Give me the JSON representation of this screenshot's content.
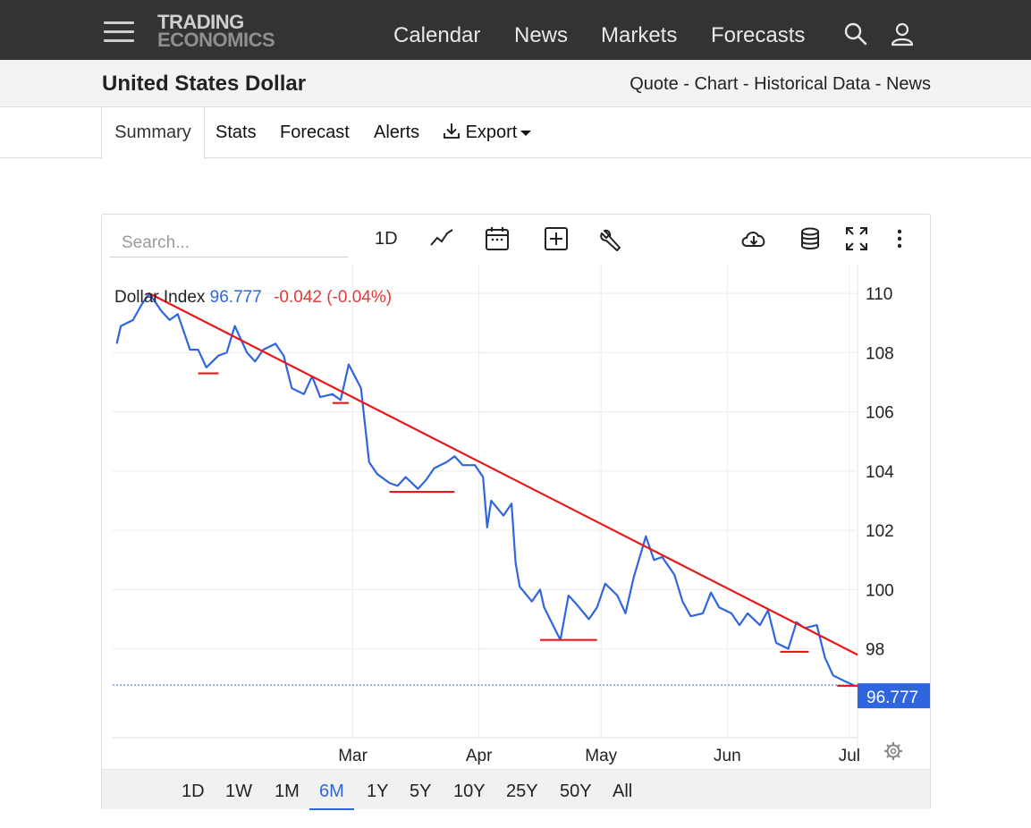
{
  "header": {
    "logo_line1": "TRADING",
    "logo_line2": "ECONOMICS",
    "nav": [
      "Calendar",
      "News",
      "Markets",
      "Forecasts"
    ]
  },
  "page": {
    "title": "United States Dollar",
    "links": [
      "Quote",
      "Chart",
      "Historical Data",
      "News"
    ]
  },
  "tabs": [
    "Summary",
    "Stats",
    "Forecast",
    "Alerts",
    "Export"
  ],
  "toolbar": {
    "search_placeholder": "Search...",
    "interval_label": "1D"
  },
  "legend": {
    "name": "Dollar Index",
    "value": "96.777",
    "change": "-0.042 (-0.04%)"
  },
  "colors": {
    "line": "#2f66e0",
    "trend": "#e8191a",
    "price_tag": "#2f66e0"
  },
  "ranges": [
    "1D",
    "1W",
    "1M",
    "6M",
    "1Y",
    "5Y",
    "10Y",
    "25Y",
    "50Y",
    "All"
  ],
  "active_range": "6M",
  "chart_data": {
    "type": "line",
    "series": [
      {
        "name": "Dollar Index",
        "values": [
          {
            "x": "2025-01-02",
            "y": 108.3
          },
          {
            "x": "2025-01-03",
            "y": 108.9
          },
          {
            "x": "2025-01-06",
            "y": 109.1
          },
          {
            "x": "2025-01-08",
            "y": 109.6
          },
          {
            "x": "2025-01-10",
            "y": 110.0
          },
          {
            "x": "2025-01-13",
            "y": 109.4
          },
          {
            "x": "2025-01-15",
            "y": 109.1
          },
          {
            "x": "2025-01-17",
            "y": 109.3
          },
          {
            "x": "2025-01-20",
            "y": 108.1
          },
          {
            "x": "2025-01-22",
            "y": 108.1
          },
          {
            "x": "2025-01-24",
            "y": 107.5
          },
          {
            "x": "2025-01-27",
            "y": 107.9
          },
          {
            "x": "2025-01-29",
            "y": 108.0
          },
          {
            "x": "2025-01-31",
            "y": 108.9
          },
          {
            "x": "2025-02-03",
            "y": 108.0
          },
          {
            "x": "2025-02-05",
            "y": 107.7
          },
          {
            "x": "2025-02-07",
            "y": 108.1
          },
          {
            "x": "2025-02-10",
            "y": 108.3
          },
          {
            "x": "2025-02-12",
            "y": 107.9
          },
          {
            "x": "2025-02-14",
            "y": 106.8
          },
          {
            "x": "2025-02-17",
            "y": 106.6
          },
          {
            "x": "2025-02-19",
            "y": 107.2
          },
          {
            "x": "2025-02-21",
            "y": 106.5
          },
          {
            "x": "2025-02-24",
            "y": 106.6
          },
          {
            "x": "2025-02-26",
            "y": 106.4
          },
          {
            "x": "2025-02-28",
            "y": 107.6
          },
          {
            "x": "2025-03-03",
            "y": 106.8
          },
          {
            "x": "2025-03-05",
            "y": 104.3
          },
          {
            "x": "2025-03-07",
            "y": 103.9
          },
          {
            "x": "2025-03-10",
            "y": 103.6
          },
          {
            "x": "2025-03-12",
            "y": 103.5
          },
          {
            "x": "2025-03-14",
            "y": 103.8
          },
          {
            "x": "2025-03-17",
            "y": 103.4
          },
          {
            "x": "2025-03-19",
            "y": 103.7
          },
          {
            "x": "2025-03-21",
            "y": 104.1
          },
          {
            "x": "2025-03-24",
            "y": 104.3
          },
          {
            "x": "2025-03-26",
            "y": 104.5
          },
          {
            "x": "2025-03-28",
            "y": 104.2
          },
          {
            "x": "2025-03-31",
            "y": 104.2
          },
          {
            "x": "2025-04-02",
            "y": 103.8
          },
          {
            "x": "2025-04-03",
            "y": 102.1
          },
          {
            "x": "2025-04-04",
            "y": 103.0
          },
          {
            "x": "2025-04-07",
            "y": 102.5
          },
          {
            "x": "2025-04-09",
            "y": 102.9
          },
          {
            "x": "2025-04-10",
            "y": 100.9
          },
          {
            "x": "2025-04-11",
            "y": 100.1
          },
          {
            "x": "2025-04-14",
            "y": 99.6
          },
          {
            "x": "2025-04-16",
            "y": 100.0
          },
          {
            "x": "2025-04-17",
            "y": 99.4
          },
          {
            "x": "2025-04-21",
            "y": 98.3
          },
          {
            "x": "2025-04-23",
            "y": 99.8
          },
          {
            "x": "2025-04-25",
            "y": 99.5
          },
          {
            "x": "2025-04-28",
            "y": 99.0
          },
          {
            "x": "2025-04-30",
            "y": 99.4
          },
          {
            "x": "2025-05-02",
            "y": 100.2
          },
          {
            "x": "2025-05-05",
            "y": 99.8
          },
          {
            "x": "2025-05-07",
            "y": 99.2
          },
          {
            "x": "2025-05-09",
            "y": 100.4
          },
          {
            "x": "2025-05-12",
            "y": 101.8
          },
          {
            "x": "2025-05-14",
            "y": 101.0
          },
          {
            "x": "2025-05-16",
            "y": 101.1
          },
          {
            "x": "2025-05-19",
            "y": 100.5
          },
          {
            "x": "2025-05-21",
            "y": 99.6
          },
          {
            "x": "2025-05-23",
            "y": 99.1
          },
          {
            "x": "2025-05-26",
            "y": 99.2
          },
          {
            "x": "2025-05-28",
            "y": 99.9
          },
          {
            "x": "2025-05-30",
            "y": 99.4
          },
          {
            "x": "2025-06-02",
            "y": 99.2
          },
          {
            "x": "2025-06-04",
            "y": 98.8
          },
          {
            "x": "2025-06-06",
            "y": 99.2
          },
          {
            "x": "2025-06-09",
            "y": 98.8
          },
          {
            "x": "2025-06-11",
            "y": 99.3
          },
          {
            "x": "2025-06-13",
            "y": 98.2
          },
          {
            "x": "2025-06-16",
            "y": 98.0
          },
          {
            "x": "2025-06-18",
            "y": 98.9
          },
          {
            "x": "2025-06-20",
            "y": 98.7
          },
          {
            "x": "2025-06-23",
            "y": 98.8
          },
          {
            "x": "2025-06-25",
            "y": 97.7
          },
          {
            "x": "2025-06-27",
            "y": 97.1
          },
          {
            "x": "2025-06-30",
            "y": 96.9
          },
          {
            "x": "2025-07-02",
            "y": 96.777
          }
        ]
      }
    ],
    "xlabel": "",
    "ylabel": "",
    "x_ticks": [
      "Mar",
      "Apr",
      "May",
      "Jun",
      "Jul"
    ],
    "x_tick_dates": [
      "2025-03-01",
      "2025-04-01",
      "2025-05-01",
      "2025-06-01",
      "2025-07-01"
    ],
    "x_range": [
      "2025-01-01",
      "2025-07-03"
    ],
    "y_ticks": [
      110,
      108,
      106,
      104,
      102,
      100,
      98
    ],
    "ylim": [
      95.0,
      111.0
    ],
    "grid": true,
    "last_value_label": "96.777",
    "annotations": {
      "trendline": [
        {
          "x": "2025-01-10",
          "y": 110.0
        },
        {
          "x": "2025-07-03",
          "y": 97.8
        }
      ],
      "support_lines": [
        {
          "x1": "2025-01-22",
          "x2": "2025-01-27",
          "y": 107.3
        },
        {
          "x1": "2025-02-24",
          "x2": "2025-02-28",
          "y": 106.3
        },
        {
          "x1": "2025-03-10",
          "x2": "2025-03-26",
          "y": 103.3
        },
        {
          "x1": "2025-04-16",
          "x2": "2025-04-30",
          "y": 98.3
        },
        {
          "x1": "2025-06-14",
          "x2": "2025-06-21",
          "y": 97.9
        },
        {
          "x1": "2025-06-28",
          "x2": "2025-07-04",
          "y": 96.75
        }
      ]
    }
  }
}
